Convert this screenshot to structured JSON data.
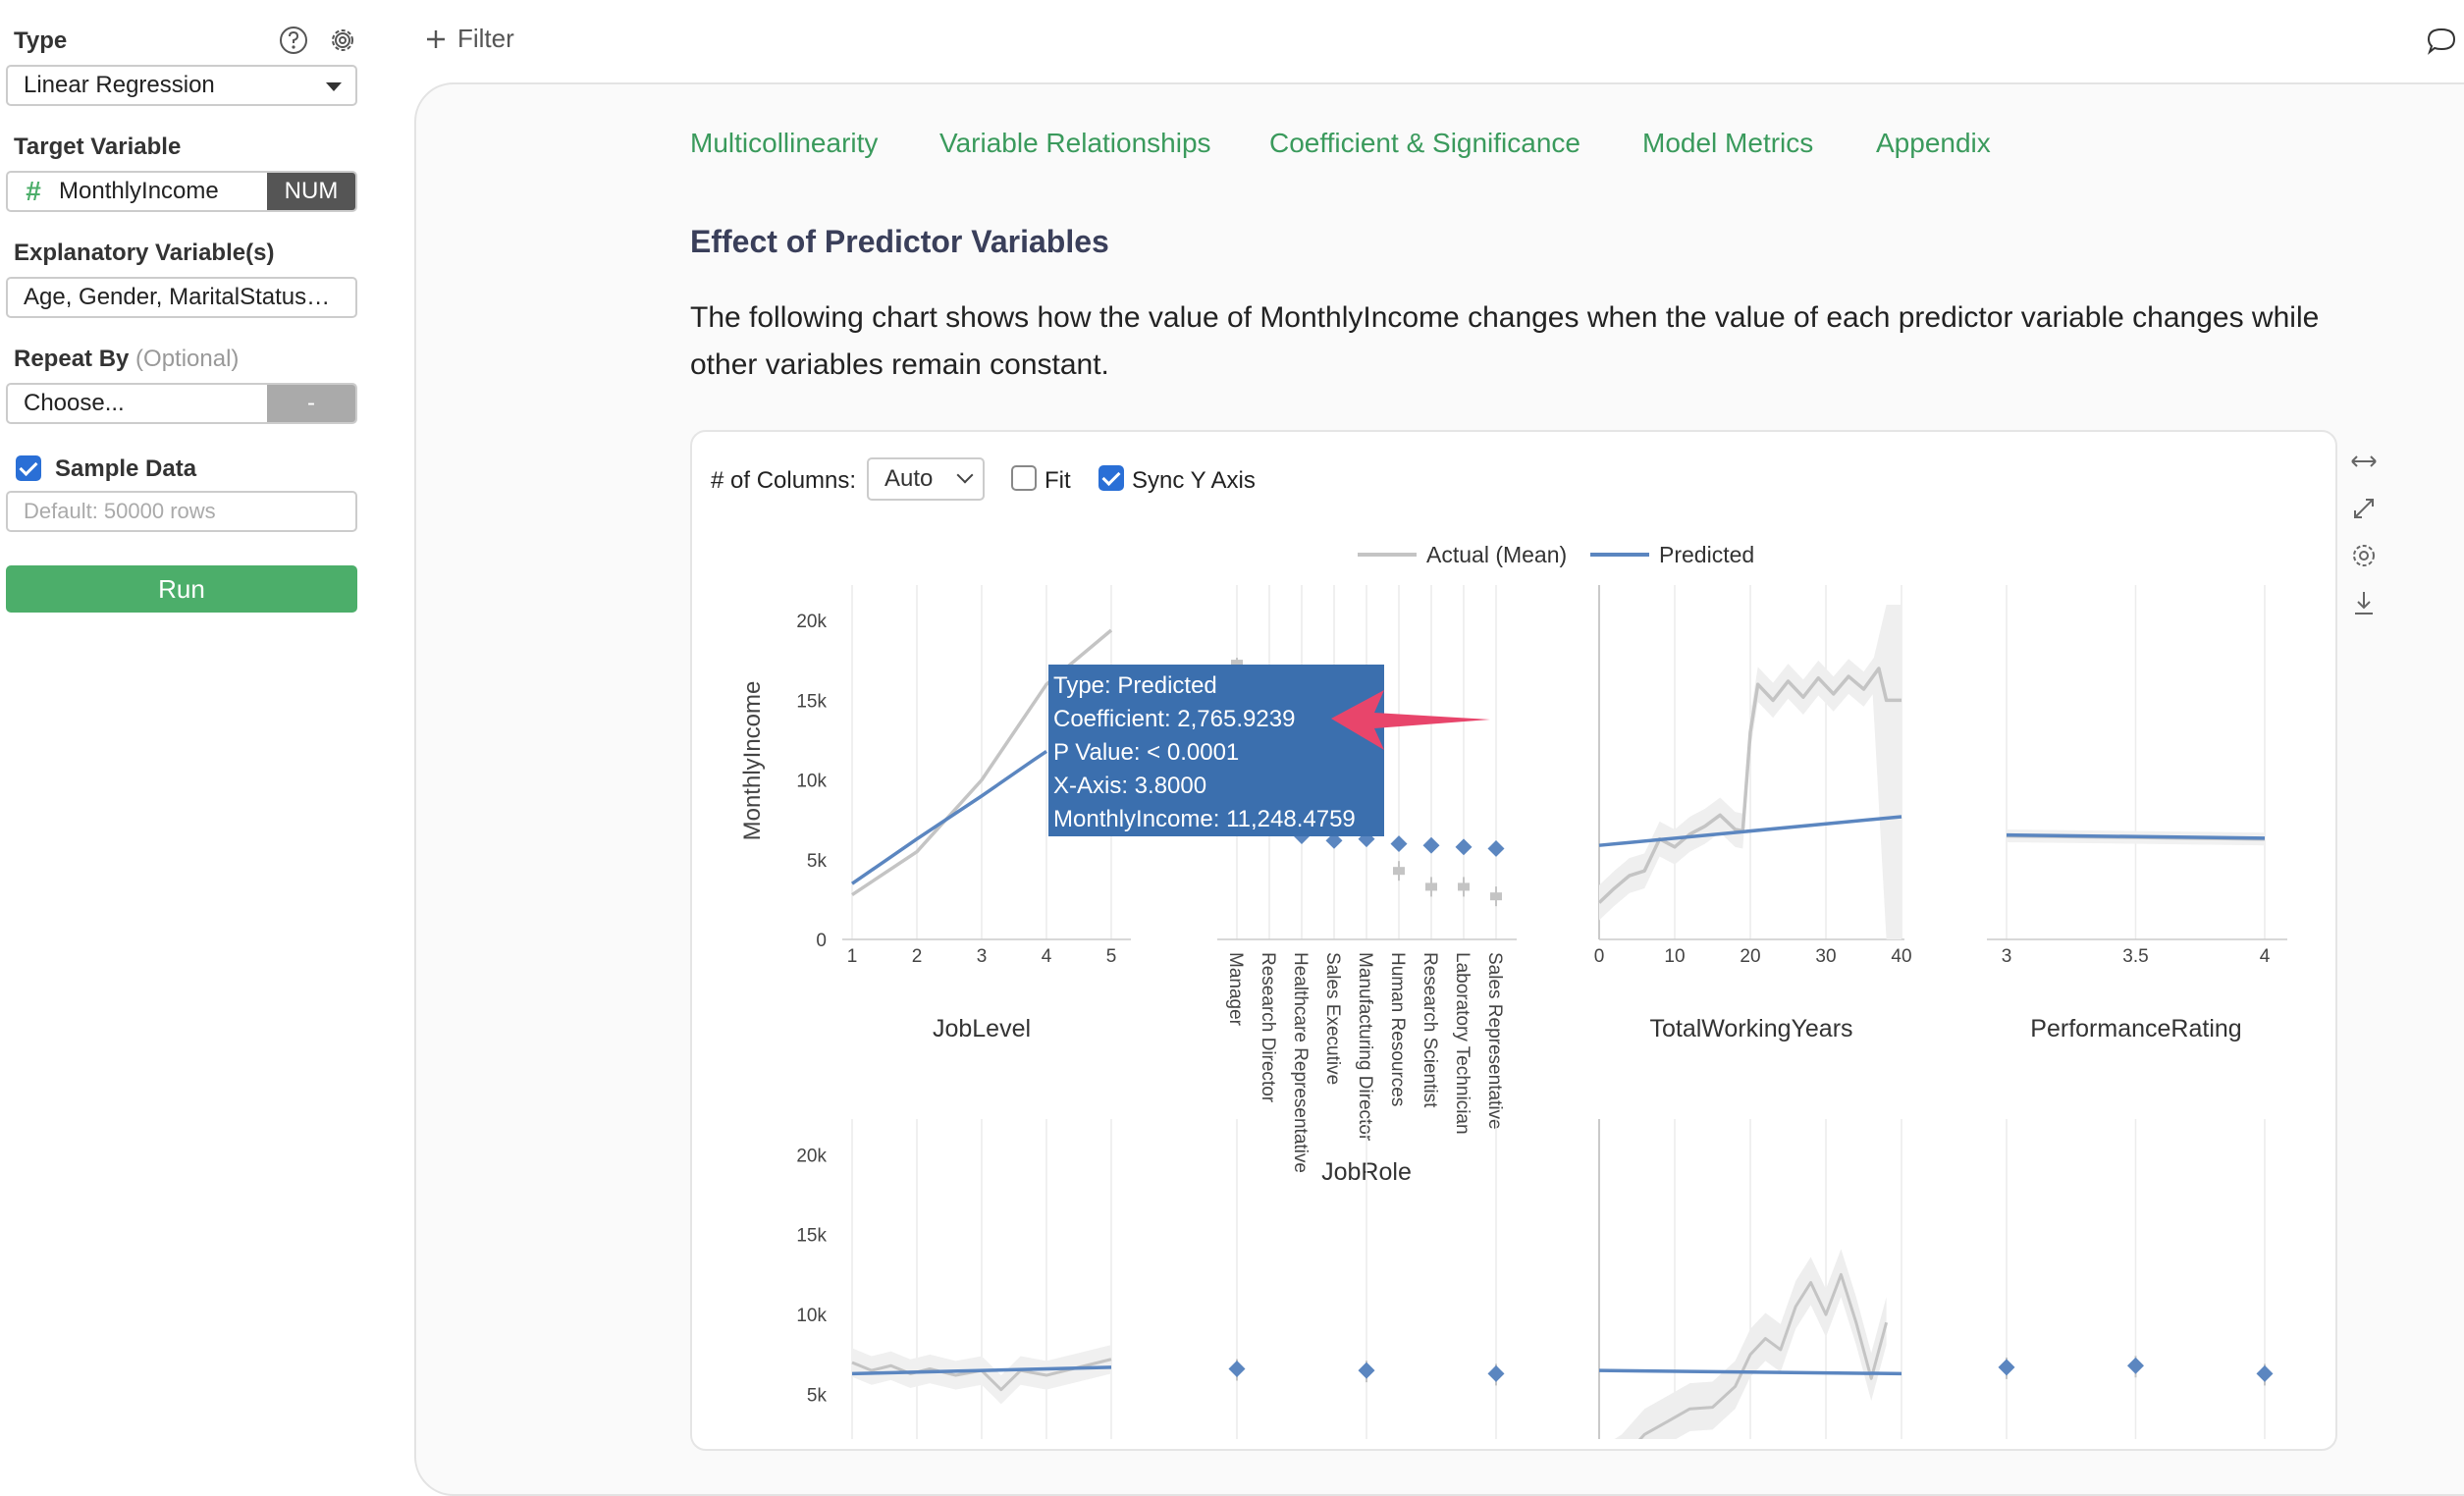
{
  "sidebar": {
    "type_label": "Type",
    "type_value": "Linear Regression",
    "target_label": "Target Variable",
    "target_hash": "#",
    "target_value": "MonthlyIncome",
    "target_badge": "NUM",
    "explanatory_label": "Explanatory Variable(s)",
    "explanatory_value": "Age, Gender, MaritalStatus…",
    "repeat_label": "Repeat By",
    "repeat_optional": "(Optional)",
    "repeat_value": "Choose...",
    "repeat_badge": "-",
    "sample_label": "Sample Data",
    "sample_placeholder": "Default: 50000 rows",
    "run_label": "Run"
  },
  "toolbar": {
    "filter_label": "Filter"
  },
  "tabs": [
    "Multicollinearity",
    "Variable Relationships",
    "Coefficient & Significance",
    "Model Metrics",
    "Appendix"
  ],
  "section_title": "Effect of Predictor Variables",
  "description": "The following chart shows how the value of MonthlyIncome changes when the value of each predictor variable changes while other variables remain constant.",
  "chart_controls": {
    "columns_label": "# of Columns:",
    "columns_value": "Auto",
    "fit_label": "Fit",
    "sync_label": "Sync Y Axis"
  },
  "tooltip": {
    "line1": "Type: Predicted",
    "line2": "Coefficient: 2,765.9239",
    "line3": "P Value: < 0.0001",
    "line4": "X-Axis: 3.8000",
    "line5": "MonthlyIncome: 11,248.4759"
  },
  "colors": {
    "green": "#4cae6a",
    "actual": "#c4c4c4",
    "predicted": "#5b86c0",
    "tooltip": "#3b6fae",
    "arrow": "#e8456b"
  },
  "chart_data": {
    "type": "line",
    "legend": [
      "Actual (Mean)",
      "Predicted"
    ],
    "legend_position": "top-center",
    "ylabel": "MonthlyIncome",
    "yticks": [
      "0",
      "5k",
      "10k",
      "15k",
      "20k"
    ],
    "ylim": [
      0,
      21000
    ],
    "row2_yticks": [
      "5k",
      "10k",
      "15k",
      "20k"
    ],
    "panels": [
      {
        "xlabel": "JobLevel",
        "xticks": [
          "1",
          "2",
          "3",
          "4",
          "5"
        ],
        "actual": [
          [
            1,
            2800
          ],
          [
            2,
            5500
          ],
          [
            3,
            10000
          ],
          [
            4,
            16000
          ],
          [
            5,
            19400
          ]
        ],
        "predicted": [
          [
            1,
            3500
          ],
          [
            2,
            6300
          ],
          [
            3,
            9000
          ],
          [
            3.8,
            11248
          ],
          [
            4,
            11800
          ]
        ]
      },
      {
        "xlabel": "JobRole",
        "categories": [
          "Manager",
          "Research Director",
          "Healthcare Representative",
          "Sales Executive",
          "Manufacturing Director",
          "Human Resources",
          "Research Scientist",
          "Laboratory Technician",
          "Sales Representative"
        ],
        "actual": [
          17300,
          16500,
          7500,
          6900,
          7200,
          4300,
          3300,
          3300,
          2700
        ],
        "predicted": [
          7500,
          7000,
          6500,
          6200,
          6300,
          6000,
          5900,
          5800,
          5700
        ]
      },
      {
        "xlabel": "TotalWorkingYears",
        "xticks": [
          "0",
          "10",
          "20",
          "30",
          "40"
        ],
        "actual": [
          [
            0,
            2300
          ],
          [
            2,
            3200
          ],
          [
            4,
            4000
          ],
          [
            6,
            4300
          ],
          [
            8,
            6300
          ],
          [
            10,
            5800
          ],
          [
            12,
            6600
          ],
          [
            14,
            7100
          ],
          [
            16,
            7800
          ],
          [
            18,
            6900
          ],
          [
            19,
            6800
          ],
          [
            20,
            13000
          ],
          [
            21,
            16000
          ],
          [
            23,
            15000
          ],
          [
            25,
            16200
          ],
          [
            27,
            15200
          ],
          [
            29,
            16400
          ],
          [
            31,
            15400
          ],
          [
            33,
            16500
          ],
          [
            35,
            15700
          ],
          [
            37,
            17000
          ],
          [
            38,
            15000
          ],
          [
            40,
            15000
          ]
        ],
        "predicted": [
          [
            0,
            5900
          ],
          [
            40,
            7700
          ]
        ]
      },
      {
        "xlabel": "PerformanceRating",
        "xticks": [
          "3",
          "3.5",
          "4"
        ],
        "actual": [
          [
            3,
            6500
          ],
          [
            4,
            6300
          ]
        ],
        "predicted": [
          [
            3,
            6550
          ],
          [
            4,
            6350
          ]
        ]
      }
    ]
  }
}
